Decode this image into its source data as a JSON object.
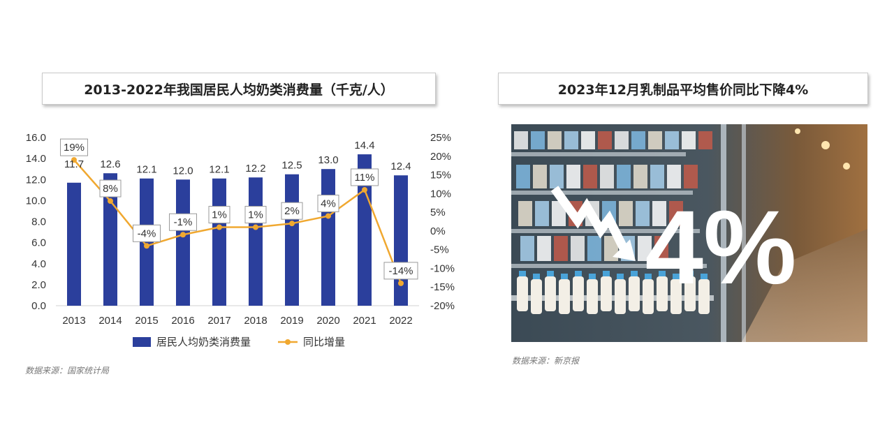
{
  "left_panel": {
    "title": "2013-2022年我国居民人均奶类消费量（千克/人）",
    "source": "数据来源：国家统计局"
  },
  "right_panel": {
    "title": "2023年12月乳制品平均售价同比下降4%",
    "source": "数据来源：新京报",
    "big_text": "4%",
    "image_description_icons": [
      "down-trend-arrow-icon"
    ]
  },
  "chart_data": {
    "type": "bar",
    "categories": [
      "2013",
      "2014",
      "2015",
      "2016",
      "2017",
      "2018",
      "2019",
      "2020",
      "2021",
      "2022"
    ],
    "series": [
      {
        "name": "居民人均奶类消费量",
        "type": "bar",
        "axis": "left",
        "values": [
          11.7,
          12.6,
          12.1,
          12.0,
          12.1,
          12.2,
          12.5,
          13.0,
          14.4,
          12.4
        ],
        "labels": [
          "11.7",
          "12.6",
          "12.1",
          "12.0",
          "12.1",
          "12.2",
          "12.5",
          "13.0",
          "14.4",
          "12.4"
        ]
      },
      {
        "name": "同比增量",
        "type": "line",
        "axis": "right",
        "values": [
          19,
          8,
          -4,
          -1,
          1,
          1,
          2,
          4,
          11,
          -14
        ],
        "labels": [
          "19%",
          "8%",
          "-4%",
          "-1%",
          "1%",
          "1%",
          "2%",
          "4%",
          "11%",
          "-14%"
        ]
      }
    ],
    "y_left": {
      "min": 0,
      "max": 16,
      "ticks": [
        "0.0",
        "2.0",
        "4.0",
        "6.0",
        "8.0",
        "10.0",
        "12.0",
        "14.0",
        "16.0"
      ]
    },
    "y_right": {
      "min": -20,
      "max": 25,
      "ticks": [
        "-20%",
        "-15%",
        "-10%",
        "-5%",
        "0%",
        "5%",
        "10%",
        "15%",
        "20%",
        "25%"
      ]
    },
    "legend_position": "bottom",
    "colors": {
      "bar": "#2b3f9c",
      "line": "#f0a830"
    }
  }
}
